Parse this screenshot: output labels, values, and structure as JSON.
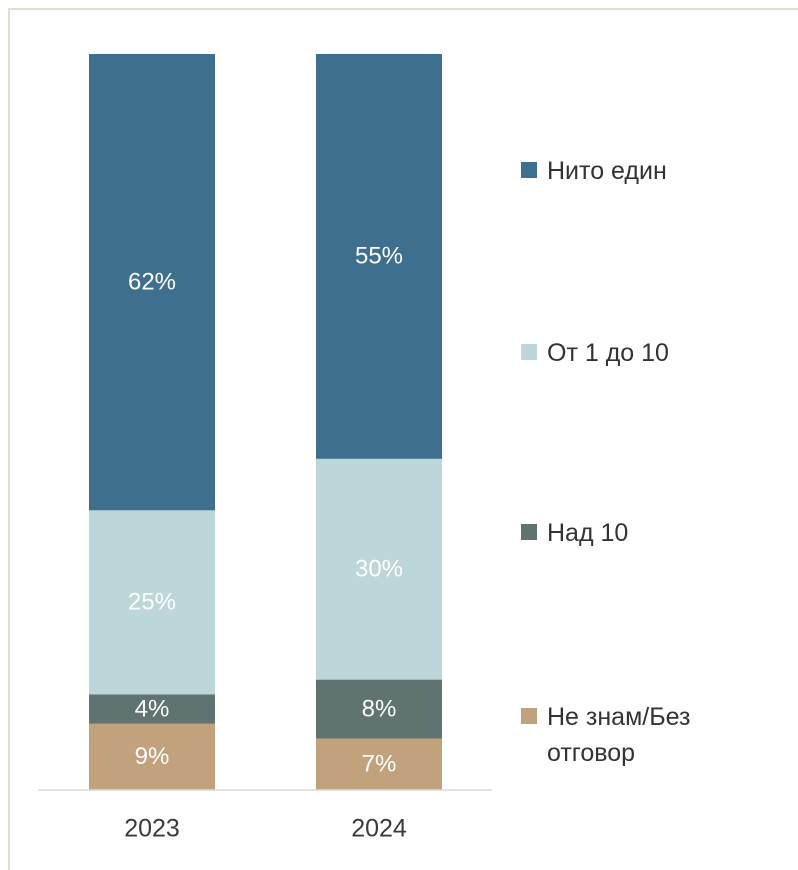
{
  "chart_data": {
    "type": "bar",
    "stacked": true,
    "categories": [
      "2023",
      "2024"
    ],
    "ylim": [
      0,
      100
    ],
    "series": [
      {
        "name": "Не знам/Без отговор",
        "values": [
          9,
          7
        ],
        "labels": [
          "9%",
          "7%"
        ],
        "color": "#c2a27d",
        "label_color": "#ffffff"
      },
      {
        "name": "Над 10",
        "values": [
          4,
          8
        ],
        "labels": [
          "4%",
          "8%"
        ],
        "color": "#5f7370",
        "label_color": "#ffffff"
      },
      {
        "name": "От 1 до 10",
        "values": [
          25,
          30
        ],
        "labels": [
          "25%",
          "30%"
        ],
        "color": "#bdd6da",
        "label_color": "#ffffff"
      },
      {
        "name": "Нито един",
        "values": [
          62,
          55
        ],
        "labels": [
          "62%",
          "55%"
        ],
        "color": "#3e6f8e",
        "label_color": "#ffffff"
      }
    ],
    "legend": {
      "placement": "right",
      "order": [
        "Нито един",
        "От 1 до 10",
        "Над 10",
        "Не знам/Без отговор"
      ],
      "entries": [
        {
          "lines": [
            "Нито един"
          ],
          "color": "#3e6f8e"
        },
        {
          "lines": [
            "От 1 до 10"
          ],
          "color": "#bdd6da"
        },
        {
          "lines": [
            "Над 10"
          ],
          "color": "#5f7370"
        },
        {
          "lines": [
            "Не знам/Без",
            "отговор"
          ],
          "color": "#c2a27d"
        }
      ]
    },
    "grid": false
  }
}
